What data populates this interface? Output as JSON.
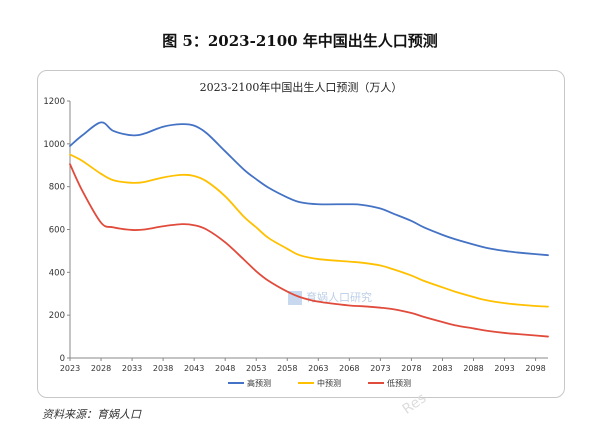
{
  "figure": {
    "title": "图 5：2023-2100 年中国出生人口预测",
    "source": "资料来源：育娲人口",
    "watermark": "育娲人口研究",
    "corner_watermark": "Res"
  },
  "chart_data": {
    "type": "line",
    "title": "2023-2100年中国出生人口预测（万人）",
    "xlabel": "",
    "ylabel": "",
    "ylim": [
      0,
      1200
    ],
    "yticks": [
      0,
      200,
      400,
      600,
      800,
      1000,
      1200
    ],
    "xlim": [
      2023,
      2100
    ],
    "xticks": [
      2023,
      2028,
      2033,
      2038,
      2043,
      2048,
      2053,
      2058,
      2063,
      2068,
      2073,
      2078,
      2083,
      2088,
      2093,
      2098
    ],
    "grid": false,
    "legend": "bottom",
    "colors": {
      "高预测": "#4472c4",
      "中预测": "#ffc000",
      "低预测": "#e04b3c"
    },
    "series": [
      {
        "name": "高预测",
        "x": [
          2023,
          2025,
          2028,
          2030,
          2033,
          2035,
          2038,
          2041,
          2043,
          2045,
          2048,
          2051,
          2053,
          2055,
          2058,
          2060,
          2063,
          2068,
          2070,
          2073,
          2075,
          2078,
          2080,
          2083,
          2085,
          2088,
          2090,
          2093,
          2095,
          2098,
          2100
        ],
        "y": [
          990,
          1040,
          1100,
          1060,
          1040,
          1048,
          1080,
          1092,
          1085,
          1050,
          965,
          880,
          835,
          795,
          750,
          728,
          718,
          718,
          715,
          698,
          675,
          640,
          610,
          575,
          555,
          530,
          515,
          500,
          493,
          485,
          480
        ]
      },
      {
        "name": "中预测",
        "x": [
          2023,
          2025,
          2028,
          2030,
          2033,
          2035,
          2038,
          2041,
          2043,
          2045,
          2048,
          2051,
          2053,
          2055,
          2058,
          2060,
          2063,
          2068,
          2070,
          2073,
          2075,
          2078,
          2080,
          2083,
          2085,
          2088,
          2090,
          2093,
          2095,
          2098,
          2100
        ],
        "y": [
          950,
          920,
          860,
          830,
          818,
          822,
          843,
          855,
          850,
          825,
          755,
          660,
          610,
          560,
          510,
          480,
          462,
          450,
          445,
          432,
          415,
          385,
          360,
          330,
          310,
          285,
          270,
          256,
          250,
          243,
          240
        ]
      },
      {
        "name": "低预测",
        "x": [
          2023,
          2025,
          2028,
          2030,
          2033,
          2035,
          2038,
          2041,
          2043,
          2045,
          2048,
          2051,
          2053,
          2055,
          2058,
          2060,
          2063,
          2068,
          2070,
          2073,
          2075,
          2078,
          2080,
          2083,
          2085,
          2088,
          2090,
          2093,
          2095,
          2098,
          2100
        ],
        "y": [
          905,
          780,
          632,
          610,
          598,
          600,
          615,
          625,
          620,
          600,
          540,
          460,
          405,
          360,
          310,
          285,
          263,
          245,
          242,
          235,
          228,
          210,
          192,
          168,
          153,
          138,
          128,
          117,
          112,
          105,
          100
        ]
      }
    ]
  }
}
